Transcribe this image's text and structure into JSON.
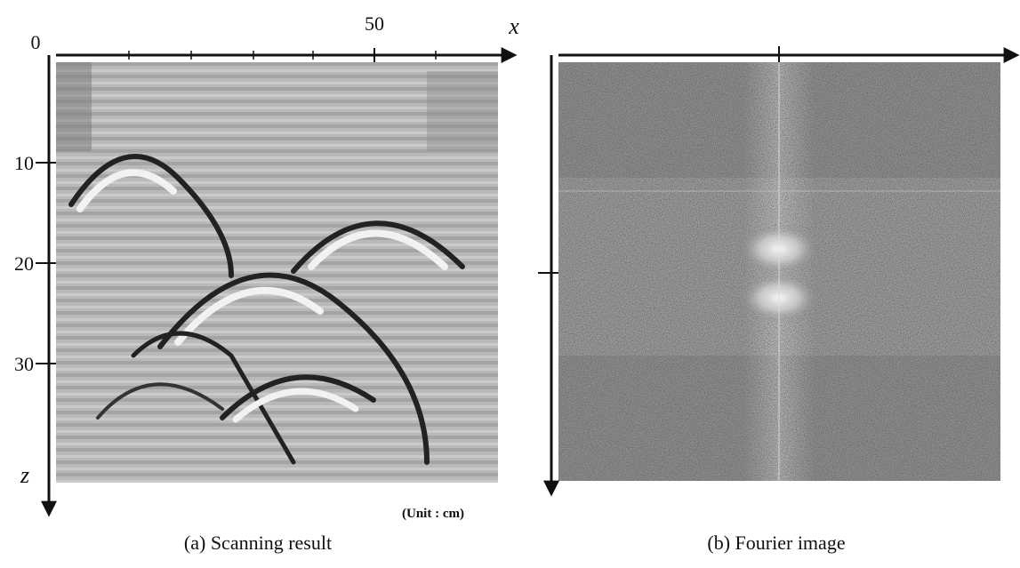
{
  "panels": [
    {
      "caption": "(a) Scanning result",
      "origin_label": "0",
      "x_axis_label": "x",
      "z_axis_label": "z",
      "x_ticks": [
        50
      ],
      "z_ticks": [
        10,
        20,
        30
      ],
      "unit_note": "(Unit : cm)"
    },
    {
      "caption": "(b) Fourier image"
    }
  ]
}
